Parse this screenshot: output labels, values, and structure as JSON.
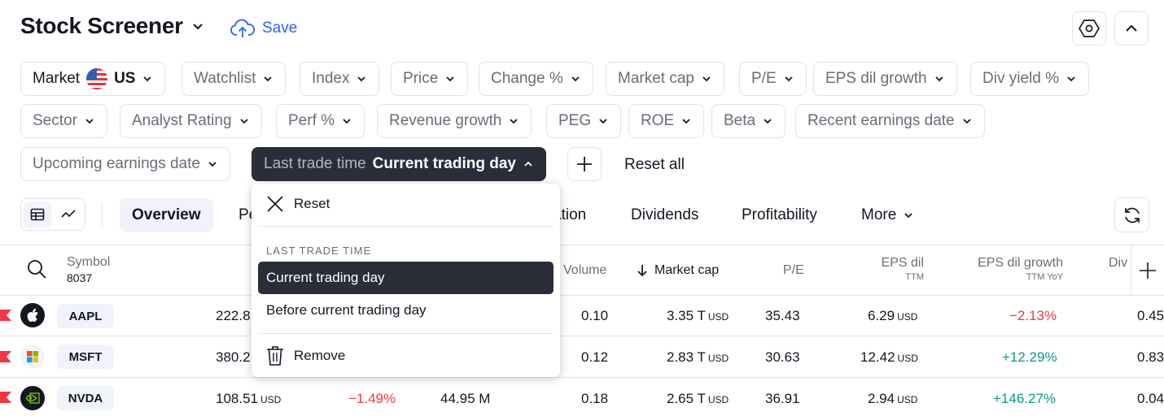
{
  "header": {
    "title": "Stock Screener",
    "save_label": "Save"
  },
  "filters": {
    "market_label": "Market",
    "market_value": "US",
    "chips": [
      "Watchlist",
      "Index",
      "Price",
      "Change %",
      "Market cap",
      "P/E",
      "EPS dil growth",
      "Div yield %",
      "Sector",
      "Analyst Rating",
      "Perf %",
      "Revenue growth",
      "PEG",
      "ROE",
      "Beta",
      "Recent earnings date",
      "Upcoming earnings date"
    ],
    "active_chip_label": "Last trade time",
    "active_chip_value": "Current trading day",
    "reset_all_label": "Reset all"
  },
  "tabs": {
    "overview": "Overview",
    "performance_partial": "Pe",
    "valuation_partial": "ation",
    "dividends": "Dividends",
    "profitability": "Profitability",
    "more": "More"
  },
  "table": {
    "headers": {
      "symbol": "Symbol",
      "symbol_count": "8037",
      "volume": "Volume",
      "market_cap": "Market cap",
      "pe": "P/E",
      "eps_dil": "EPS dil",
      "eps_dil_sub": "TTM",
      "eps_growth": "EPS dil growth",
      "eps_growth_sub": "TTM YoY",
      "div_partial": "Div"
    },
    "rows": [
      {
        "ticker": "AAPL",
        "price": "222.8",
        "change": "",
        "volume_m": "",
        "rel_volume": "0.10",
        "market_cap": "3.35 T",
        "market_cap_unit": "USD",
        "pe": "35.43",
        "eps": "6.29",
        "eps_unit": "USD",
        "eps_growth": "−2.13%",
        "div": "0.45"
      },
      {
        "ticker": "MSFT",
        "price": "380.2",
        "change": "",
        "volume_m": "",
        "rel_volume": "0.12",
        "market_cap": "2.83 T",
        "market_cap_unit": "USD",
        "pe": "30.63",
        "eps": "12.42",
        "eps_unit": "USD",
        "eps_growth": "+12.29%",
        "div": "0.83"
      },
      {
        "ticker": "NVDA",
        "price": "108.51",
        "price_unit": "USD",
        "change": "−1.49%",
        "volume_m": "44.95 M",
        "rel_volume": "0.18",
        "market_cap": "2.65 T",
        "market_cap_unit": "USD",
        "pe": "36.91",
        "eps": "2.94",
        "eps_unit": "USD",
        "eps_growth": "+146.27%",
        "div": "0.04"
      }
    ]
  },
  "menu": {
    "reset_label": "Reset",
    "section_header": "LAST TRADE TIME",
    "options": [
      "Current trading day",
      "Before current trading day"
    ],
    "remove_label": "Remove"
  },
  "colors": {
    "accent": "#2962ff",
    "negative": "#f23645",
    "positive": "#089981",
    "active_chip_bg": "#2a2e39"
  }
}
